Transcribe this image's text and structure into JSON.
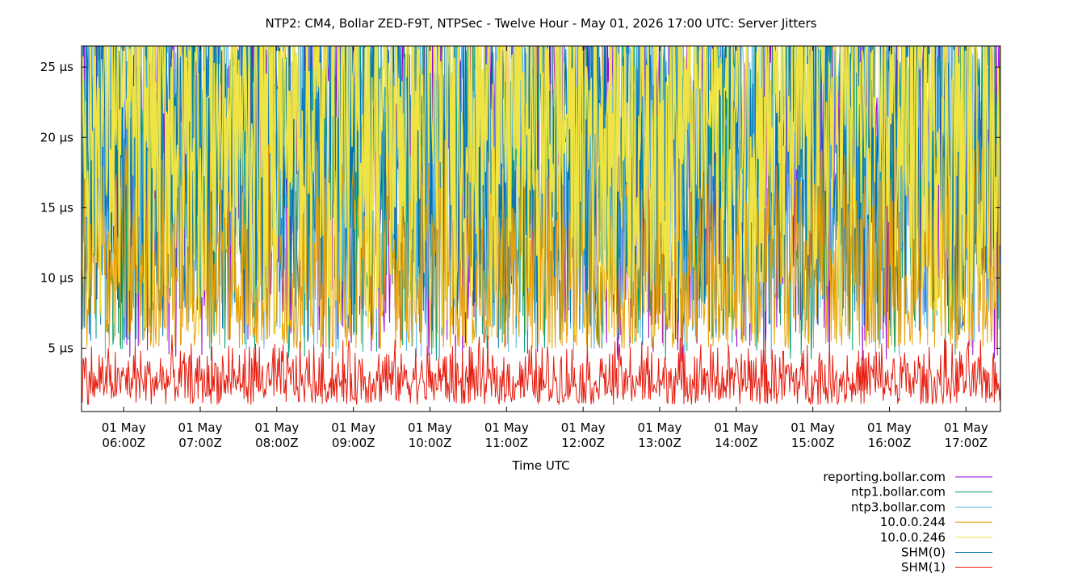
{
  "chart_data": {
    "type": "line",
    "title": "NTP2: CM4, Bollar ZED-F9T, NTPSec - Twelve Hour - May 01, 2026 17:00 UTC: Server Jitters",
    "xlabel": "Time UTC",
    "ylabel": "",
    "y_unit": "µs",
    "ylim": [
      0.5,
      26.5
    ],
    "y_ticks": [
      {
        "value": 5,
        "label": "5 µs"
      },
      {
        "value": 10,
        "label": "10 µs"
      },
      {
        "value": 15,
        "label": "15 µs"
      },
      {
        "value": 20,
        "label": "20 µs"
      },
      {
        "value": 25,
        "label": "25 µs"
      }
    ],
    "xlim": [
      "2026-05-01T05:27Z",
      "2026-05-01T17:27Z"
    ],
    "x_ticks": [
      {
        "value": "2026-05-01T06:00Z",
        "line1": "01 May",
        "line2": "06:00Z"
      },
      {
        "value": "2026-05-01T07:00Z",
        "line1": "01 May",
        "line2": "07:00Z"
      },
      {
        "value": "2026-05-01T08:00Z",
        "line1": "01 May",
        "line2": "08:00Z"
      },
      {
        "value": "2026-05-01T09:00Z",
        "line1": "01 May",
        "line2": "09:00Z"
      },
      {
        "value": "2026-05-01T10:00Z",
        "line1": "01 May",
        "line2": "10:00Z"
      },
      {
        "value": "2026-05-01T11:00Z",
        "line1": "01 May",
        "line2": "11:00Z"
      },
      {
        "value": "2026-05-01T12:00Z",
        "line1": "01 May",
        "line2": "12:00Z"
      },
      {
        "value": "2026-05-01T13:00Z",
        "line1": "01 May",
        "line2": "13:00Z"
      },
      {
        "value": "2026-05-01T14:00Z",
        "line1": "01 May",
        "line2": "14:00Z"
      },
      {
        "value": "2026-05-01T15:00Z",
        "line1": "01 May",
        "line2": "15:00Z"
      },
      {
        "value": "2026-05-01T16:00Z",
        "line1": "01 May",
        "line2": "16:00Z"
      },
      {
        "value": "2026-05-01T17:00Z",
        "line1": "01 May",
        "line2": "17:00Z"
      }
    ],
    "grid": false,
    "legend": "bottom-right",
    "series": [
      {
        "name": "reporting.bollar.com",
        "color": "#9400d3",
        "typical_range": [
          4,
          30
        ],
        "values": []
      },
      {
        "name": "ntp1.bollar.com",
        "color": "#009e73",
        "typical_range": [
          4,
          30
        ],
        "values": []
      },
      {
        "name": "ntp3.bollar.com",
        "color": "#56b4e9",
        "typical_range": [
          4,
          30
        ],
        "values": []
      },
      {
        "name": "10.0.0.244",
        "color": "#e69f00",
        "typical_range": [
          5,
          20
        ],
        "values": []
      },
      {
        "name": "10.0.0.246",
        "color": "#f0e442",
        "typical_range": [
          5,
          30
        ],
        "values": []
      },
      {
        "name": "SHM(0)",
        "color": "#0072b2",
        "typical_range": [
          5,
          30
        ],
        "values": []
      },
      {
        "name": "SHM(1)",
        "color": "#e51e10",
        "typical_range": [
          1,
          6
        ],
        "values": []
      }
    ]
  }
}
